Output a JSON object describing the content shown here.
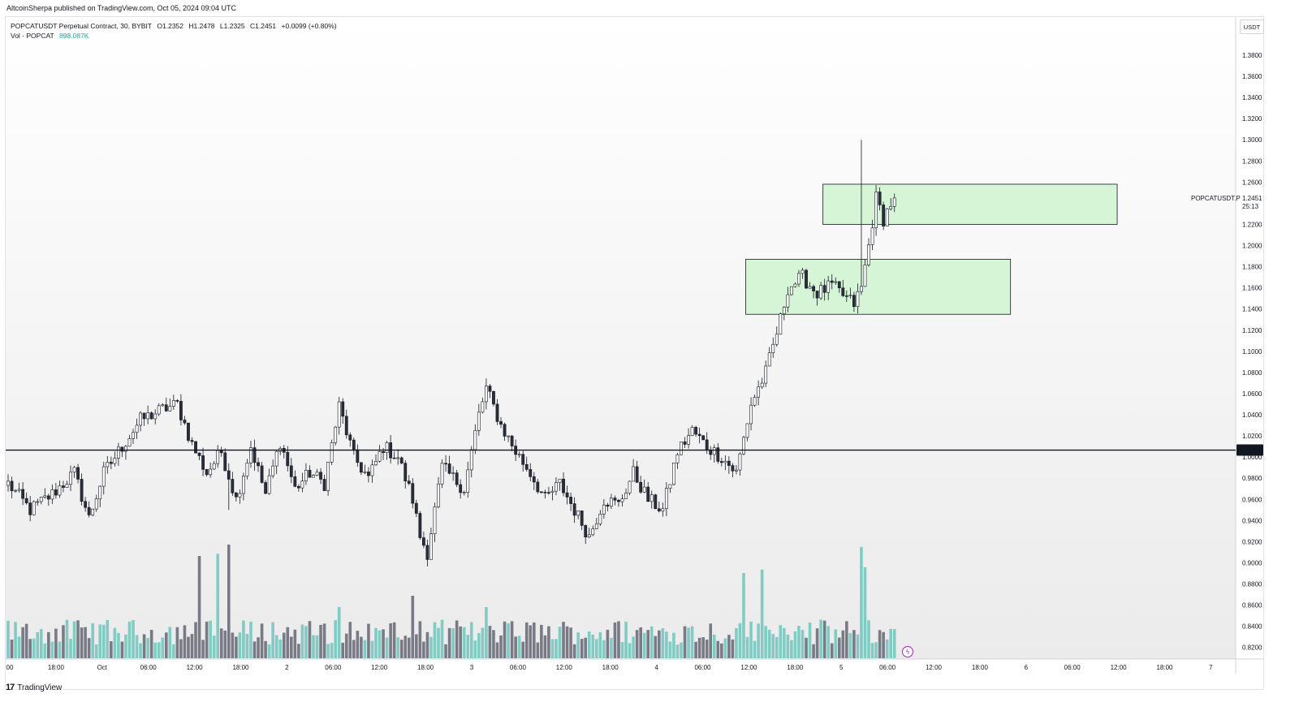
{
  "header": {
    "publisher": "AltcoinSherpa published on TradingView.com, Oct 05, 2024 09:04 UTC"
  },
  "legend": {
    "symbol": "POPCATUSDT Perpetual Contract, 30, BYBIT",
    "open": "O1.2352",
    "high": "H1.2478",
    "low": "L1.2325",
    "close": "C1.2451",
    "change": "+0.0099 (+0.80%)",
    "vol_label": "Vol · POPCAT",
    "vol_value": "898.087K"
  },
  "footer": {
    "brand": "TradingView",
    "logo_text": "17"
  },
  "currency": "USDT",
  "colors": {
    "up": "#ffffff",
    "down": "#2a2e39",
    "candle_border": "#131722",
    "vol_up": "#80cbc4",
    "vol_down": "#787b86",
    "zone_fill": "#d6f5d6",
    "zone_border": "#131722",
    "price_badge": "#131722"
  },
  "chart_data": {
    "type": "candlestick",
    "symbol": "POPCATUSDT Perpetual Contract",
    "interval": "30",
    "exchange": "BYBIT",
    "ylim": [
      0.81,
      1.41
    ],
    "y_ticks": [
      "1.3800",
      "1.3600",
      "1.3400",
      "1.3200",
      "1.3000",
      "1.2800",
      "1.2600",
      "1.2200",
      "1.2000",
      "1.1800",
      "1.1600",
      "1.1400",
      "1.1200",
      "1.1000",
      "1.0800",
      "1.0600",
      "1.0400",
      "1.0200",
      "1.0000",
      "0.9800",
      "0.9600",
      "0.9400",
      "0.9200",
      "0.9000",
      "0.8800",
      "0.8600",
      "0.8400",
      "0.8200"
    ],
    "x_ticks": [
      "00",
      "18:00",
      "Oct",
      "06:00",
      "12:00",
      "18:00",
      "2",
      "06:00",
      "12:00",
      "18:00",
      "3",
      "06:00",
      "12:00",
      "18:00",
      "4",
      "06:00",
      "12:00",
      "18:00",
      "5",
      "06:00",
      "12:00",
      "18:00",
      "6",
      "06:00",
      "12:00",
      "18:00",
      "7"
    ],
    "horizontal_line": {
      "price": 1.0066,
      "label": "1.0066"
    },
    "current_price": {
      "value": "1.2451",
      "label": "POPCATUSDT.P",
      "countdown": "25:13"
    },
    "zones": [
      {
        "from_bar": 201,
        "to_bar": 273,
        "top": 1.187,
        "bottom": 1.135
      },
      {
        "from_bar": 222,
        "to_bar": 302,
        "top": 1.258,
        "bottom": 1.22
      }
    ],
    "anchors": [
      [
        0,
        0.975
      ],
      [
        6,
        0.95
      ],
      [
        12,
        0.965
      ],
      [
        18,
        0.985
      ],
      [
        22,
        0.942
      ],
      [
        26,
        0.985
      ],
      [
        30,
        1.005
      ],
      [
        36,
        1.035
      ],
      [
        42,
        1.045
      ],
      [
        46,
        1.05
      ],
      [
        50,
        1.012
      ],
      [
        54,
        0.985
      ],
      [
        58,
        1.005
      ],
      [
        62,
        0.96
      ],
      [
        66,
        1.01
      ],
      [
        70,
        0.965
      ],
      [
        74,
        1.015
      ],
      [
        78,
        0.97
      ],
      [
        82,
        0.985
      ],
      [
        86,
        0.975
      ],
      [
        90,
        1.048
      ],
      [
        94,
        1.0
      ],
      [
        98,
        0.98
      ],
      [
        102,
        1.01
      ],
      [
        106,
        1.0
      ],
      [
        110,
        0.96
      ],
      [
        112,
        0.925
      ],
      [
        114,
        0.91
      ],
      [
        118,
        0.99
      ],
      [
        124,
        0.97
      ],
      [
        128,
        1.04
      ],
      [
        130,
        1.065
      ],
      [
        134,
        1.03
      ],
      [
        138,
        1.005
      ],
      [
        142,
        0.985
      ],
      [
        146,
        0.96
      ],
      [
        150,
        0.975
      ],
      [
        154,
        0.95
      ],
      [
        158,
        0.925
      ],
      [
        162,
        0.96
      ],
      [
        166,
        0.955
      ],
      [
        170,
        0.985
      ],
      [
        174,
        0.96
      ],
      [
        178,
        0.95
      ],
      [
        182,
        1.005
      ],
      [
        186,
        1.025
      ],
      [
        190,
        1.01
      ],
      [
        194,
        1.0
      ],
      [
        198,
        0.985
      ],
      [
        202,
        1.05
      ],
      [
        206,
        1.08
      ],
      [
        210,
        1.13
      ],
      [
        212,
        1.16
      ],
      [
        216,
        1.17
      ],
      [
        220,
        1.155
      ],
      [
        224,
        1.162
      ],
      [
        228,
        1.15
      ],
      [
        230,
        1.145
      ],
      [
        232,
        1.16
      ],
      [
        234,
        1.2
      ],
      [
        236,
        1.245
      ],
      [
        238,
        1.225
      ],
      [
        240,
        1.24
      ],
      [
        241,
        1.245
      ]
    ],
    "volume_peaks": [
      [
        52,
        0.9
      ],
      [
        57,
        0.92
      ],
      [
        60,
        1.0
      ],
      [
        90,
        0.45
      ],
      [
        110,
        0.55
      ],
      [
        130,
        0.45
      ],
      [
        200,
        0.75
      ],
      [
        205,
        0.78
      ],
      [
        232,
        0.98
      ],
      [
        233,
        0.8
      ]
    ]
  }
}
